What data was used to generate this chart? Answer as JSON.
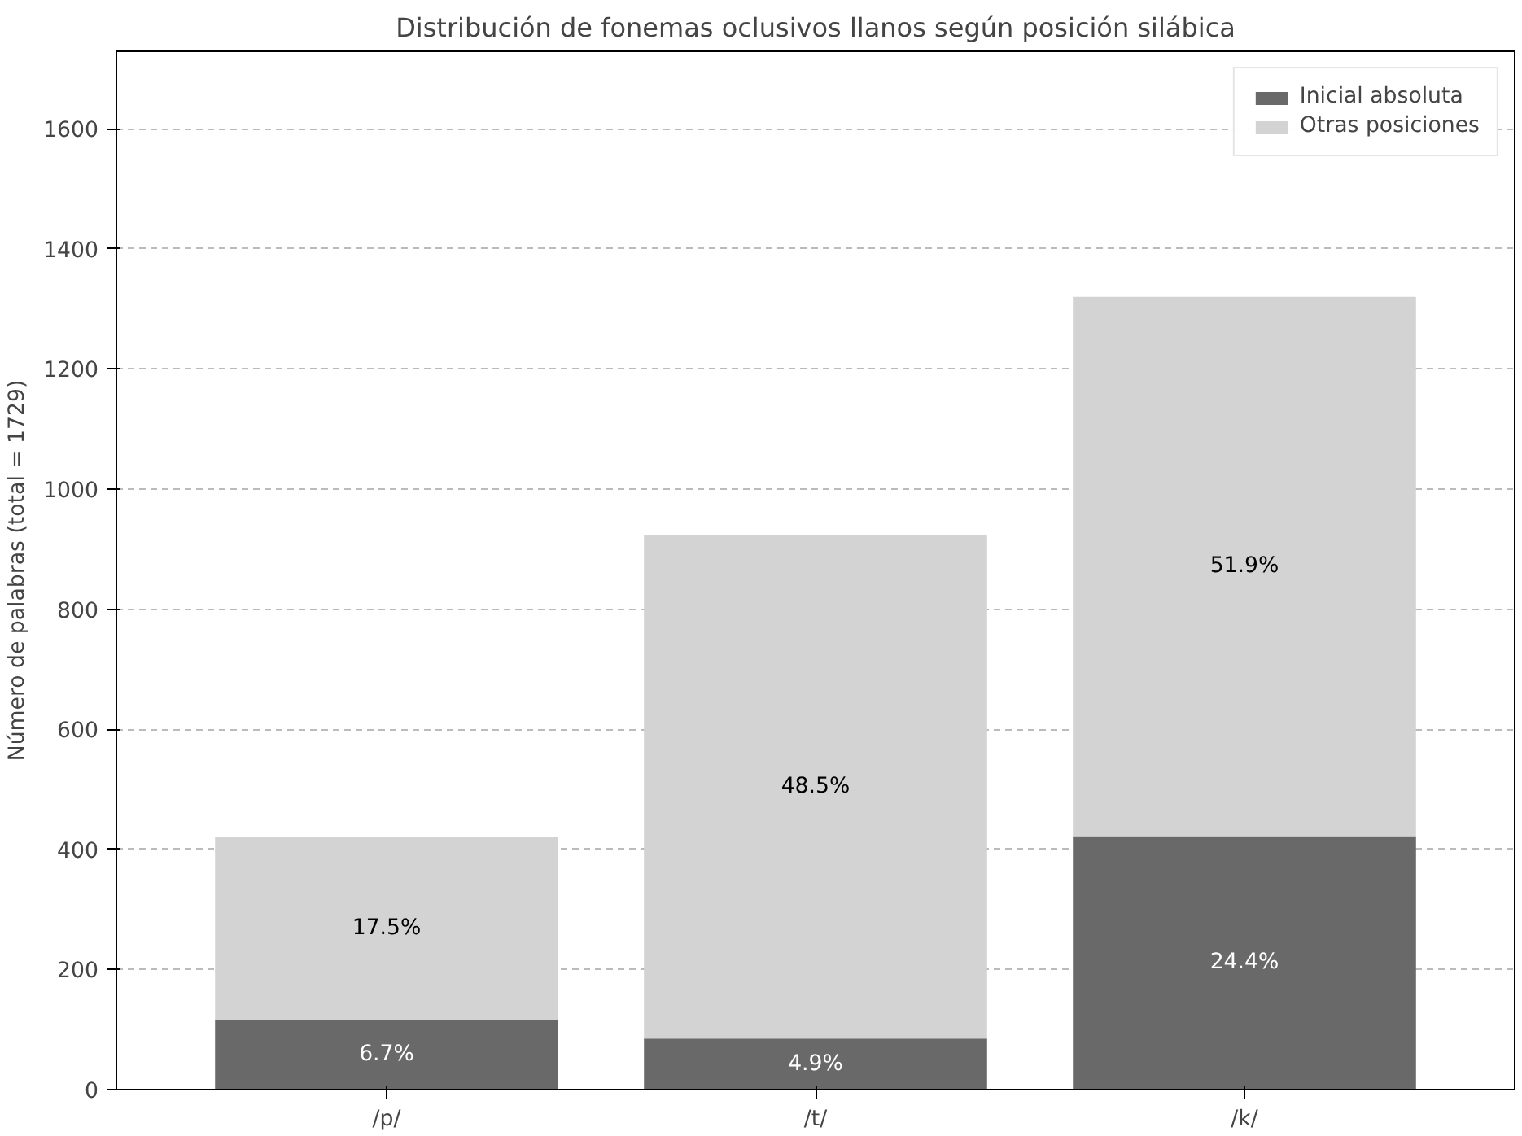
{
  "chart_data": {
    "type": "bar",
    "title": "Distribución de fonemas oclusivos llanos según posición silábica",
    "ylabel": "Número de palabras (total = 1729)",
    "categories": [
      "/p/",
      "/t/",
      "/k/"
    ],
    "stacked": true,
    "series": [
      {
        "name": "Inicial absoluta",
        "color": "#696969",
        "values": [
          116,
          85,
          422
        ]
      },
      {
        "name": "Otras posiciones",
        "color": "#d3d3d3",
        "values": [
          304,
          838,
          898
        ]
      }
    ],
    "annotations": [
      "6.7%",
      "4.9%",
      "24.4%",
      "17.5%",
      "48.5%",
      "51.9%"
    ],
    "ylim": [
      0,
      1729
    ],
    "yticks": [
      0,
      200,
      400,
      600,
      800,
      1000,
      1200,
      1400,
      1600
    ],
    "grid": "y",
    "legend": "top right"
  }
}
